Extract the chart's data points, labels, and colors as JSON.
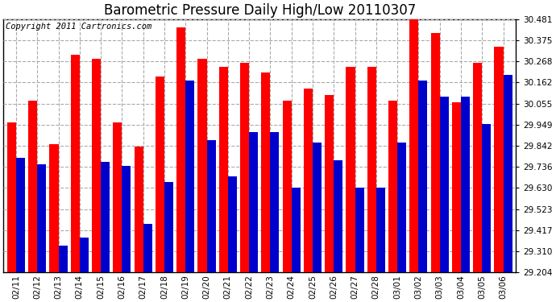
{
  "title": "Barometric Pressure Daily High/Low 20110307",
  "copyright": "Copyright 2011 Cartronics.com",
  "dates": [
    "02/11",
    "02/12",
    "02/13",
    "02/14",
    "02/15",
    "02/16",
    "02/17",
    "02/18",
    "02/19",
    "02/20",
    "02/21",
    "02/22",
    "02/23",
    "02/24",
    "02/25",
    "02/26",
    "02/27",
    "02/28",
    "03/01",
    "03/02",
    "03/03",
    "03/04",
    "03/05",
    "03/06"
  ],
  "highs": [
    29.96,
    30.07,
    29.85,
    30.3,
    30.28,
    29.96,
    29.84,
    30.19,
    30.44,
    30.28,
    30.24,
    30.26,
    30.21,
    30.07,
    30.13,
    30.1,
    30.24,
    30.24,
    30.07,
    30.48,
    30.41,
    30.06,
    30.26,
    30.34
  ],
  "lows": [
    29.78,
    29.75,
    29.34,
    29.38,
    29.76,
    29.74,
    29.45,
    29.66,
    30.17,
    29.87,
    29.69,
    29.91,
    29.91,
    29.63,
    29.86,
    29.77,
    29.63,
    29.63,
    29.86,
    30.17,
    30.09,
    30.09,
    29.95,
    30.2
  ],
  "bar_color_high": "#FF0000",
  "bar_color_low": "#0000CC",
  "background_color": "#FFFFFF",
  "grid_color": "#AAAAAA",
  "yticks": [
    29.204,
    29.31,
    29.417,
    29.523,
    29.63,
    29.736,
    29.842,
    29.949,
    30.055,
    30.162,
    30.268,
    30.375,
    30.481
  ],
  "ylim_min": 29.204,
  "ylim_max": 30.481,
  "title_fontsize": 12,
  "copyright_fontsize": 7.5,
  "bar_width": 0.42
}
